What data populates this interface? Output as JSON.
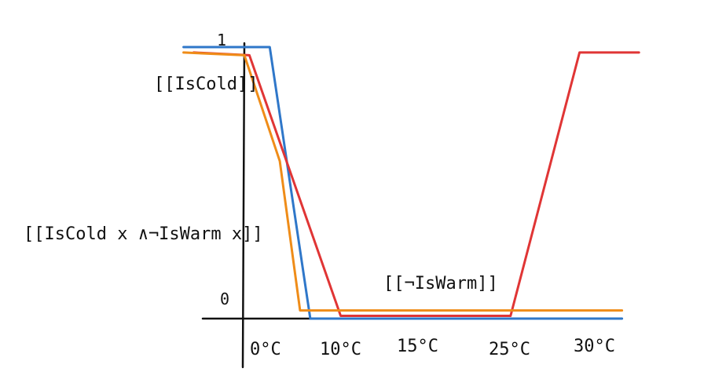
{
  "chart_data": {
    "type": "line",
    "x_ticks": [
      "0°C",
      "10°C",
      "15°C",
      "25°C",
      "30°C"
    ],
    "y_ticks": [
      "0",
      "1"
    ],
    "series": [
      {
        "name": "[[IsCold]]",
        "color": "#2f77c9",
        "points": [
          [
            -6,
            1
          ],
          [
            2.5,
            1
          ],
          [
            6.5,
            0
          ],
          [
            31,
            0
          ]
        ]
      },
      {
        "name": "[[¬IsWarm]]",
        "color": "#e03535",
        "points": [
          [
            -5,
            0.98
          ],
          [
            0.5,
            0.97
          ],
          [
            9.5,
            0.01
          ],
          [
            24,
            0.01
          ],
          [
            28.5,
            0.98
          ],
          [
            32,
            0.98
          ]
        ]
      },
      {
        "name": "[[IsCold x ∧¬IsWarm x]]",
        "color": "#ef8c18",
        "points": [
          [
            -6,
            0.98
          ],
          [
            0,
            0.97
          ],
          [
            3.5,
            0.58
          ],
          [
            5.5,
            0.03
          ],
          [
            31,
            0.03
          ]
        ]
      }
    ],
    "annotations": [
      "[[IsCold]]",
      "[[IsCold x ∧¬IsWarm x]]",
      "[[¬IsWarm]]"
    ],
    "legend": "none",
    "grid": false
  }
}
